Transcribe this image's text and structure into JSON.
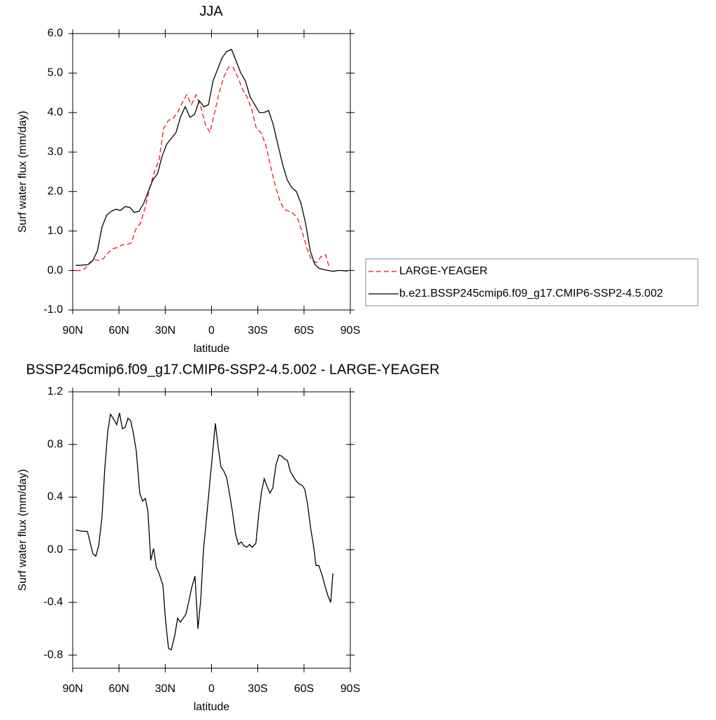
{
  "chart_data": [
    {
      "type": "line",
      "title": "JJA",
      "ylabel": "Surf water flux (mm/day)",
      "xlabel": "latitude",
      "xlim": [
        90,
        -90
      ],
      "xticks": [
        {
          "value": 90,
          "label": "90N"
        },
        {
          "value": 60,
          "label": "60N"
        },
        {
          "value": 30,
          "label": "30N"
        },
        0,
        {
          "value": -30,
          "label": "30S"
        },
        {
          "value": -60,
          "label": "60S"
        },
        {
          "value": -90,
          "label": "90S"
        }
      ],
      "ylim": [
        -1,
        6
      ],
      "yticks": [
        {
          "value": 6,
          "label": "6.0"
        },
        {
          "value": 5,
          "label": "5.0"
        },
        {
          "value": 4,
          "label": "4.0"
        },
        {
          "value": 3,
          "label": "3.0"
        },
        {
          "value": 2,
          "label": "2.0"
        },
        {
          "value": 1,
          "label": "1.0"
        },
        {
          "value": 0,
          "label": "0.0"
        },
        {
          "value": -1,
          "label": "-1.0"
        }
      ],
      "legend": "right",
      "series": [
        {
          "name": "LARGE-YEAGER",
          "color": "#e8141c",
          "style": "dashed",
          "x": [
            88,
            85,
            82,
            79,
            76,
            73,
            70,
            67,
            64,
            61,
            58,
            55,
            52,
            49,
            46,
            43,
            40,
            37,
            34,
            31,
            28,
            25,
            22,
            19,
            16,
            13,
            10,
            7,
            4,
            1,
            -2,
            -5,
            -8,
            -11,
            -14,
            -17,
            -20,
            -23,
            -26,
            -29,
            -32,
            -35,
            -38,
            -41,
            -44,
            -47,
            -50,
            -53,
            -56,
            -59,
            -62,
            -65,
            -68,
            -71,
            -74,
            -76
          ],
          "values": [
            0.0,
            0.0,
            0.05,
            0.2,
            0.28,
            0.25,
            0.3,
            0.45,
            0.55,
            0.58,
            0.65,
            0.65,
            0.7,
            1.05,
            1.2,
            1.6,
            2.1,
            2.5,
            2.8,
            3.6,
            3.8,
            3.85,
            4.0,
            4.25,
            4.45,
            4.2,
            4.45,
            4.15,
            3.7,
            3.5,
            4.0,
            4.5,
            4.9,
            5.15,
            5.15,
            4.9,
            4.6,
            4.4,
            4.1,
            3.6,
            3.5,
            3.2,
            2.7,
            2.2,
            1.8,
            1.55,
            1.5,
            1.45,
            1.3,
            0.95,
            0.55,
            0.25,
            0.2,
            0.35,
            0.4,
            0.12
          ]
        },
        {
          "name": "b.e21.BSSP245cmip6.f09_g17.CMIP6-SSP2-4.5.002",
          "color": "#000000",
          "style": "solid",
          "x": [
            88,
            85,
            80,
            77,
            74,
            71,
            68,
            65,
            62,
            59,
            56,
            53,
            50,
            47,
            44,
            41,
            38,
            35,
            32,
            29,
            26,
            23,
            20,
            17,
            14,
            11,
            8,
            5,
            2,
            -1,
            -4,
            -7,
            -10,
            -13,
            -16,
            -19,
            -22,
            -25,
            -28,
            -31,
            -34,
            -37,
            -40,
            -43,
            -46,
            -49,
            -52,
            -55,
            -58,
            -61,
            -64,
            -67,
            -70,
            -73,
            -76,
            -79,
            -82,
            -85,
            -88
          ],
          "values": [
            0.13,
            0.13,
            0.15,
            0.25,
            0.5,
            1.1,
            1.4,
            1.5,
            1.55,
            1.52,
            1.62,
            1.6,
            1.47,
            1.5,
            1.7,
            2.0,
            2.3,
            2.45,
            2.9,
            3.2,
            3.35,
            3.5,
            3.9,
            4.15,
            3.88,
            3.95,
            4.3,
            4.15,
            4.2,
            4.8,
            5.1,
            5.4,
            5.55,
            5.6,
            5.3,
            5.0,
            4.8,
            4.4,
            4.2,
            4.0,
            4.0,
            4.05,
            3.7,
            3.2,
            2.7,
            2.3,
            2.1,
            2.0,
            1.7,
            1.2,
            0.5,
            0.15,
            0.05,
            0.02,
            0.0,
            -0.02,
            0.0,
            0.0,
            -0.02
          ]
        }
      ]
    },
    {
      "type": "line",
      "title": "BSSP245cmip6.f09_g17.CMIP6-SSP2-4.5.002 - LARGE-YEAGER",
      "ylabel": "Surf water flux (mm/day)",
      "xlabel": "latitude",
      "xlim": [
        90,
        -90
      ],
      "xticks": [
        {
          "value": 90,
          "label": "90N"
        },
        {
          "value": 60,
          "label": "60N"
        },
        {
          "value": 30,
          "label": "30N"
        },
        0,
        {
          "value": -30,
          "label": "30S"
        },
        {
          "value": -60,
          "label": "60S"
        },
        {
          "value": -90,
          "label": "90S"
        }
      ],
      "ylim": [
        -0.9,
        1.2
      ],
      "yticks": [
        1.2,
        0.8,
        0.4,
        {
          "value": 0,
          "label": "0.0"
        },
        -0.4,
        -0.8
      ],
      "series": [
        {
          "color": "#000000",
          "style": "solid",
          "x": [
            88.2,
            83.7,
            80.5,
            76.9,
            75.1,
            73.2,
            71,
            69.2,
            67.3,
            65.5,
            63.3,
            61.5,
            59.6,
            57.8,
            56,
            54.2,
            52.4,
            50.6,
            48.8,
            46.5,
            44.7,
            42.9,
            41.2,
            39.4,
            37.6,
            35.8,
            34,
            31.5,
            29.7,
            27.9,
            26.1,
            23.8,
            22,
            20.2,
            18.4,
            16.6,
            14.7,
            12.9,
            10.7,
            8.8,
            7,
            5.2,
            3.4,
            1.6,
            -0.2,
            -2.5,
            -4.3,
            -6.1,
            -7.9,
            -9.8,
            -11.6,
            -13.4,
            -15.6,
            -17.5,
            -19.3,
            -21.1,
            -22.9,
            -24.7,
            -26.5,
            -28.8,
            -30.6,
            -32.4,
            -34.2,
            -36.1,
            -37.9,
            -39.7,
            -41.9,
            -43.8,
            -45.6,
            -47.4,
            -49.2,
            -51,
            -52.8,
            -55.1,
            -56.9,
            -58.7,
            -60.5,
            -62.4,
            -64.2,
            -66,
            -67.8,
            -69.6,
            -71.9,
            -73.7,
            -75.5,
            -77.3,
            -78.7
          ],
          "values": [
            0.15,
            0.14,
            0.14,
            -0.03,
            -0.05,
            0.03,
            0.25,
            0.62,
            0.9,
            1.03,
            0.99,
            0.95,
            1.04,
            0.92,
            0.93,
            1.0,
            0.98,
            0.88,
            0.75,
            0.43,
            0.37,
            0.39,
            0.29,
            -0.08,
            0.01,
            -0.13,
            -0.18,
            -0.27,
            -0.55,
            -0.75,
            -0.76,
            -0.65,
            -0.52,
            -0.55,
            -0.52,
            -0.49,
            -0.39,
            -0.29,
            -0.2,
            -0.6,
            -0.38,
            0.0,
            0.22,
            0.45,
            0.67,
            0.96,
            0.78,
            0.63,
            0.6,
            0.55,
            0.43,
            0.3,
            0.12,
            0.04,
            0.06,
            0.03,
            0.02,
            0.04,
            0.02,
            0.05,
            0.27,
            0.44,
            0.54,
            0.48,
            0.43,
            0.47,
            0.65,
            0.72,
            0.71,
            0.69,
            0.68,
            0.6,
            0.56,
            0.52,
            0.5,
            0.49,
            0.46,
            0.34,
            0.17,
            0.04,
            -0.12,
            -0.12,
            -0.2,
            -0.28,
            -0.35,
            -0.4,
            -0.18
          ]
        }
      ]
    }
  ]
}
